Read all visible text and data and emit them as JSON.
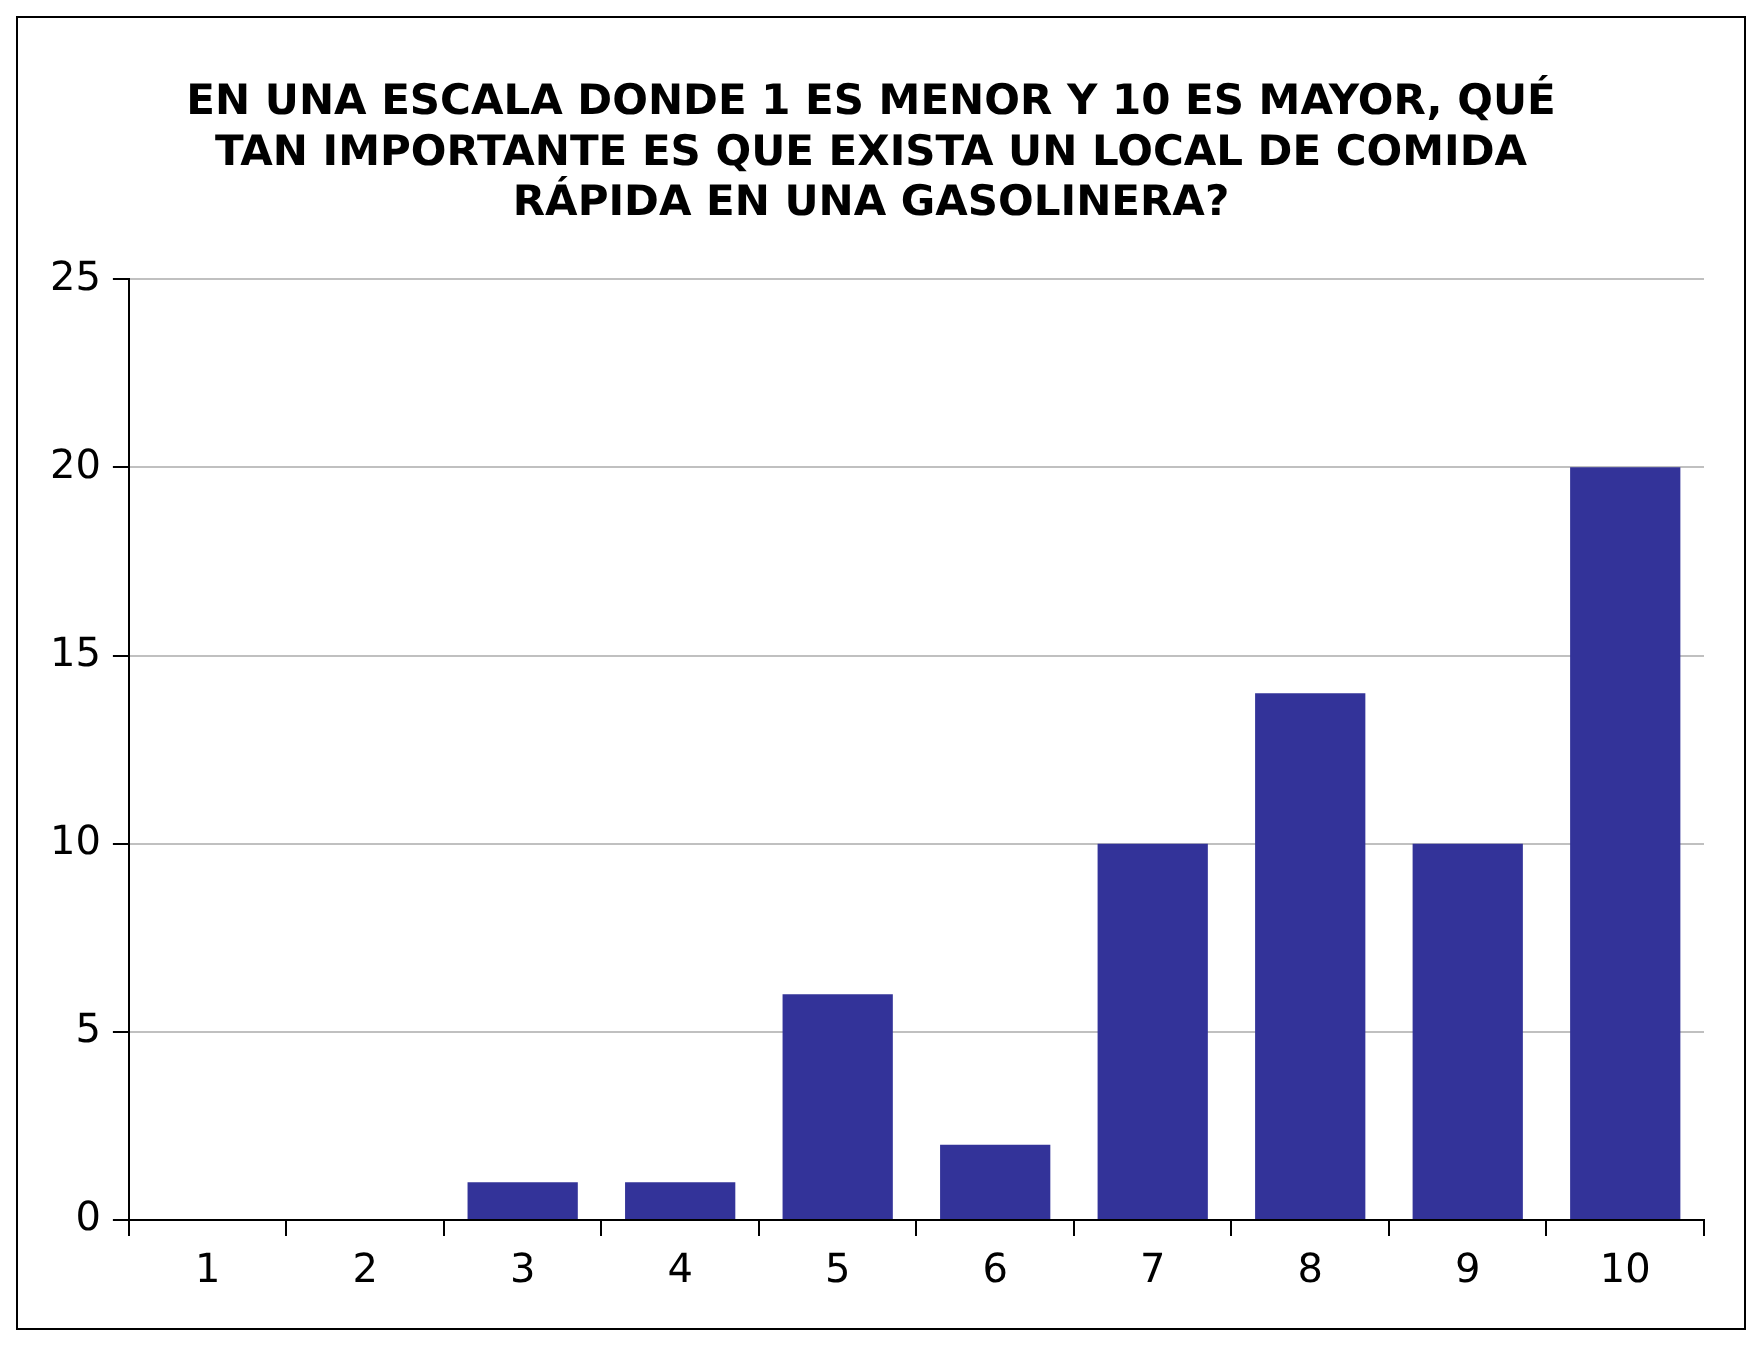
{
  "chart_data": {
    "type": "bar",
    "title": "EN UNA ESCALA DONDE 1 ES MENOR Y 10 ES MAYOR, QUÉ TAN IMPORTANTE ES QUE EXISTA UN LOCAL DE COMIDA RÁPIDA EN UNA GASOLINERA?",
    "categories": [
      "1",
      "2",
      "3",
      "4",
      "5",
      "6",
      "7",
      "8",
      "9",
      "10"
    ],
    "values": [
      0,
      0,
      1,
      1,
      6,
      2,
      10,
      14,
      10,
      20
    ],
    "color": "#333399",
    "ylim": [
      0,
      25
    ],
    "yticks": [
      0,
      5,
      10,
      15,
      20,
      25
    ],
    "grid": "y",
    "legend": false
  }
}
